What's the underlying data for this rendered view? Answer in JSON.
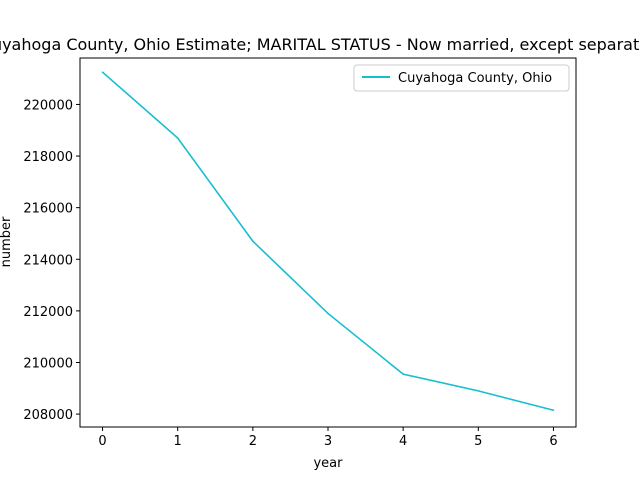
{
  "chart_data": {
    "type": "line",
    "title": "Cuyahoga County, Ohio Estimate; MARITAL STATUS - Now married, except separated",
    "xlabel": "year",
    "ylabel": "number",
    "x": [
      0,
      1,
      2,
      3,
      4,
      5,
      6
    ],
    "xticks": [
      "0",
      "1",
      "2",
      "3",
      "4",
      "5",
      "6"
    ],
    "yticks": [
      "208000",
      "210000",
      "212000",
      "214000",
      "216000",
      "218000",
      "220000"
    ],
    "xlim": [
      -0.3,
      6.3
    ],
    "ylim": [
      207500,
      221800
    ],
    "series": [
      {
        "name": "Cuyahoga County, Ohio",
        "color": "#17becf",
        "values": [
          221250,
          218700,
          214700,
          211900,
          209550,
          208900,
          208150
        ]
      }
    ],
    "legend_position": "top-right",
    "grid": false
  }
}
